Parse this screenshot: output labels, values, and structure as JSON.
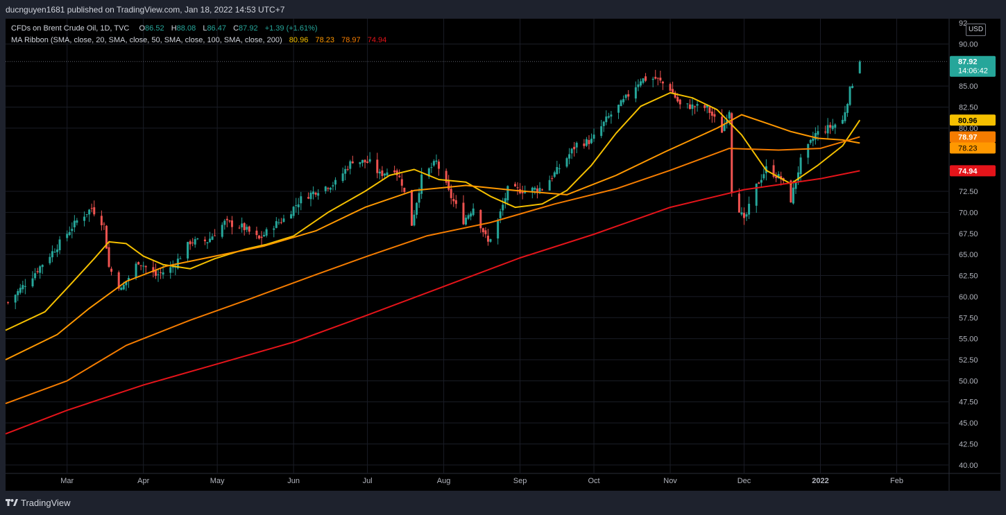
{
  "header": {
    "publisher_line": "ducnguyen1681 published on TradingView.com, Jan 18, 2022 14:53 UTC+7"
  },
  "legend": {
    "symbol": "CFDs on Brent Crude Oil, 1D, TVC",
    "open_label": "O",
    "open_value": "86.52",
    "high_label": "H",
    "high_value": "88.08",
    "low_label": "L",
    "low_value": "86.47",
    "close_label": "C",
    "close_value": "87.92",
    "change": "+1.39 (+1.61%)",
    "ribbon_label": "MA Ribbon (SMA, close, 20, SMA, close, 50, SMA, close, 100, SMA, close, 200)",
    "ma20_value": "80.96",
    "ma50_value": "78.23",
    "ma100_value": "78.97",
    "ma200_value": "74.94"
  },
  "price_scale": {
    "currency": "USD",
    "top_tick_partial": "92",
    "last_price": "87.92",
    "countdown": "14:06:42"
  },
  "footer": {
    "brand": "TradingView"
  },
  "colors": {
    "up": "#26a69a",
    "down": "#ef5350",
    "ma20": "#f5c000",
    "ma50": "#ff9800",
    "ma100": "#f57c00",
    "ma200": "#e5141a",
    "chart_bg": "#000000",
    "frame_bg": "#1e222d",
    "grid": "#1a1d26"
  },
  "chart_data": {
    "type": "candlestick",
    "grid": true,
    "y_ticks": [
      "90.00",
      "85.00",
      "82.50",
      "80.00",
      "72.50",
      "70.00",
      "67.50",
      "65.00",
      "62.50",
      "60.00",
      "57.50",
      "55.00",
      "52.50",
      "50.00",
      "47.50",
      "45.00",
      "42.50",
      "40.00"
    ],
    "y_range": [
      39.0,
      93.0
    ],
    "x_labels": [
      {
        "label": "Mar",
        "date": "2021-03-01"
      },
      {
        "label": "Apr",
        "date": "2021-04-01"
      },
      {
        "label": "May",
        "date": "2021-05-01"
      },
      {
        "label": "Jun",
        "date": "2021-06-01"
      },
      {
        "label": "Jul",
        "date": "2021-07-01"
      },
      {
        "label": "Aug",
        "date": "2021-08-01"
      },
      {
        "label": "Sep",
        "date": "2021-09-01"
      },
      {
        "label": "Oct",
        "date": "2021-10-01"
      },
      {
        "label": "Nov",
        "date": "2021-11-01"
      },
      {
        "label": "Dec",
        "date": "2021-12-01"
      },
      {
        "label": "2022",
        "date": "2022-01-01"
      },
      {
        "label": "Feb",
        "date": "2022-02-01"
      }
    ],
    "x_range": [
      "2021-02-04",
      "2022-02-22"
    ],
    "series": [
      {
        "name": "SMA 20",
        "color": "#f5c000",
        "points": [
          [
            "2021-02-04",
            56.0
          ],
          [
            "2021-02-20",
            58.2
          ],
          [
            "2021-03-01",
            61.0
          ],
          [
            "2021-03-12",
            64.5
          ],
          [
            "2021-03-18",
            66.5
          ],
          [
            "2021-03-25",
            66.3
          ],
          [
            "2021-04-01",
            64.8
          ],
          [
            "2021-04-09",
            63.8
          ],
          [
            "2021-04-20",
            63.3
          ],
          [
            "2021-04-30",
            64.5
          ],
          [
            "2021-05-12",
            65.6
          ],
          [
            "2021-05-21",
            66.2
          ],
          [
            "2021-06-01",
            67.2
          ],
          [
            "2021-06-15",
            70.0
          ],
          [
            "2021-06-30",
            72.5
          ],
          [
            "2021-07-10",
            74.4
          ],
          [
            "2021-07-20",
            75.1
          ],
          [
            "2021-07-30",
            73.9
          ],
          [
            "2021-08-10",
            73.6
          ],
          [
            "2021-08-20",
            71.9
          ],
          [
            "2021-08-30",
            70.6
          ],
          [
            "2021-09-10",
            71.0
          ],
          [
            "2021-09-20",
            72.6
          ],
          [
            "2021-09-30",
            75.6
          ],
          [
            "2021-10-10",
            79.4
          ],
          [
            "2021-10-20",
            82.6
          ],
          [
            "2021-11-01",
            84.2
          ],
          [
            "2021-11-10",
            83.6
          ],
          [
            "2021-11-20",
            82.2
          ],
          [
            "2021-11-30",
            79.2
          ],
          [
            "2021-12-10",
            75.0
          ],
          [
            "2021-12-20",
            73.4
          ],
          [
            "2021-12-31",
            75.6
          ],
          [
            "2022-01-10",
            77.9
          ],
          [
            "2022-01-17",
            80.96
          ]
        ]
      },
      {
        "name": "SMA 50",
        "color": "#ff9800",
        "points": [
          [
            "2021-02-04",
            52.5
          ],
          [
            "2021-02-25",
            55.5
          ],
          [
            "2021-03-10",
            58.6
          ],
          [
            "2021-03-25",
            61.8
          ],
          [
            "2021-04-10",
            63.6
          ],
          [
            "2021-04-30",
            64.8
          ],
          [
            "2021-05-20",
            66.0
          ],
          [
            "2021-06-10",
            67.8
          ],
          [
            "2021-06-30",
            70.6
          ],
          [
            "2021-07-20",
            72.6
          ],
          [
            "2021-08-10",
            73.2
          ],
          [
            "2021-08-30",
            72.6
          ],
          [
            "2021-09-20",
            72.1
          ],
          [
            "2021-10-10",
            74.4
          ],
          [
            "2021-10-30",
            77.2
          ],
          [
            "2021-11-20",
            80.0
          ],
          [
            "2021-11-30",
            81.6
          ],
          [
            "2021-12-10",
            80.6
          ],
          [
            "2021-12-20",
            79.6
          ],
          [
            "2021-12-31",
            78.8
          ],
          [
            "2022-01-10",
            78.6
          ],
          [
            "2022-01-17",
            78.23
          ]
        ]
      },
      {
        "name": "SMA 100",
        "color": "#f57c00",
        "points": [
          [
            "2021-02-04",
            47.3
          ],
          [
            "2021-03-01",
            50.0
          ],
          [
            "2021-03-25",
            54.2
          ],
          [
            "2021-04-20",
            57.2
          ],
          [
            "2021-05-15",
            59.8
          ],
          [
            "2021-06-10",
            62.6
          ],
          [
            "2021-07-01",
            64.8
          ],
          [
            "2021-07-25",
            67.2
          ],
          [
            "2021-08-20",
            68.8
          ],
          [
            "2021-09-15",
            71.0
          ],
          [
            "2021-10-10",
            72.8
          ],
          [
            "2021-11-01",
            75.0
          ],
          [
            "2021-11-25",
            77.6
          ],
          [
            "2021-12-15",
            77.4
          ],
          [
            "2022-01-01",
            77.6
          ],
          [
            "2022-01-17",
            78.97
          ]
        ]
      },
      {
        "name": "SMA 200",
        "color": "#e5141a",
        "points": [
          [
            "2021-02-04",
            43.7
          ],
          [
            "2021-03-01",
            46.5
          ],
          [
            "2021-04-01",
            49.5
          ],
          [
            "2021-05-01",
            52.0
          ],
          [
            "2021-06-01",
            54.6
          ],
          [
            "2021-07-01",
            57.8
          ],
          [
            "2021-08-01",
            61.2
          ],
          [
            "2021-09-01",
            64.6
          ],
          [
            "2021-10-01",
            67.4
          ],
          [
            "2021-11-01",
            70.6
          ],
          [
            "2021-12-01",
            72.7
          ],
          [
            "2022-01-01",
            74.0
          ],
          [
            "2022-01-17",
            74.94
          ]
        ]
      },
      {
        "name": "Close (approx. path)",
        "color": "candles",
        "points": [
          [
            "2021-02-05",
            59.3
          ],
          [
            "2021-02-15",
            62.5
          ],
          [
            "2021-02-25",
            66.0
          ],
          [
            "2021-03-05",
            69.0
          ],
          [
            "2021-03-11",
            70.5
          ],
          [
            "2021-03-16",
            68.5
          ],
          [
            "2021-03-18",
            63.5
          ],
          [
            "2021-03-23",
            60.8
          ],
          [
            "2021-03-30",
            64.2
          ],
          [
            "2021-04-06",
            62.5
          ],
          [
            "2021-04-13",
            63.5
          ],
          [
            "2021-04-20",
            66.5
          ],
          [
            "2021-04-27",
            66.6
          ],
          [
            "2021-05-04",
            68.8
          ],
          [
            "2021-05-11",
            68.3
          ],
          [
            "2021-05-18",
            66.8
          ],
          [
            "2021-05-24",
            68.5
          ],
          [
            "2021-05-28",
            69.2
          ],
          [
            "2021-06-04",
            71.6
          ],
          [
            "2021-06-11",
            72.7
          ],
          [
            "2021-06-18",
            73.5
          ],
          [
            "2021-06-25",
            76.2
          ],
          [
            "2021-07-02",
            75.9
          ],
          [
            "2021-07-06",
            74.5
          ],
          [
            "2021-07-12",
            75.2
          ],
          [
            "2021-07-15",
            73.5
          ],
          [
            "2021-07-19",
            68.6
          ],
          [
            "2021-07-23",
            74.1
          ],
          [
            "2021-07-29",
            76.0
          ],
          [
            "2021-08-03",
            72.4
          ],
          [
            "2021-08-09",
            69.0
          ],
          [
            "2021-08-13",
            70.6
          ],
          [
            "2021-08-19",
            66.4
          ],
          [
            "2021-08-23",
            69.0
          ],
          [
            "2021-08-27",
            72.7
          ],
          [
            "2021-09-03",
            72.6
          ],
          [
            "2021-09-10",
            72.9
          ],
          [
            "2021-09-17",
            75.3
          ],
          [
            "2021-09-24",
            78.1
          ],
          [
            "2021-09-30",
            78.5
          ],
          [
            "2021-10-06",
            81.0
          ],
          [
            "2021-10-13",
            83.2
          ],
          [
            "2021-10-20",
            85.8
          ],
          [
            "2021-10-26",
            85.9
          ],
          [
            "2021-11-01",
            84.7
          ],
          [
            "2021-11-05",
            82.7
          ],
          [
            "2021-11-10",
            82.6
          ],
          [
            "2021-11-16",
            82.4
          ],
          [
            "2021-11-22",
            79.7
          ],
          [
            "2021-11-25",
            82.2
          ],
          [
            "2021-11-26",
            72.7
          ],
          [
            "2021-12-01",
            68.9
          ],
          [
            "2021-12-06",
            73.1
          ],
          [
            "2021-12-10",
            75.2
          ],
          [
            "2021-12-16",
            74.0
          ],
          [
            "2021-12-20",
            71.5
          ],
          [
            "2021-12-24",
            76.1
          ],
          [
            "2021-12-30",
            79.3
          ],
          [
            "2022-01-04",
            80.0
          ],
          [
            "2022-01-10",
            80.9
          ],
          [
            "2022-01-13",
            84.5
          ],
          [
            "2022-01-17",
            87.92
          ]
        ]
      }
    ],
    "last_bar": {
      "date": "2022-01-17",
      "open": 86.52,
      "high": 88.08,
      "low": 86.47,
      "close": 87.92
    }
  }
}
